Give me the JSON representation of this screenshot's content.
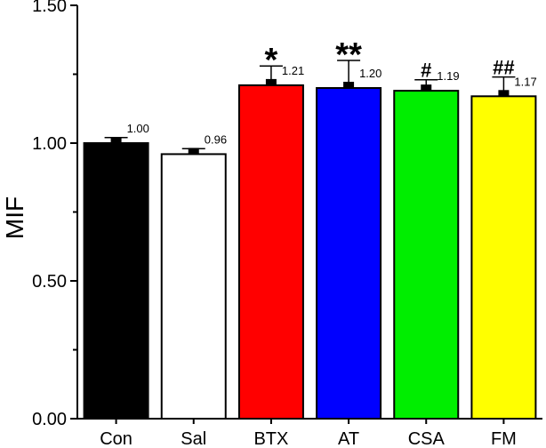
{
  "chart_data": {
    "type": "bar",
    "title": "",
    "xlabel": "",
    "ylabel": "MIF",
    "ylim": [
      0,
      1.5
    ],
    "yticks": [
      0.0,
      0.5,
      1.0,
      1.5
    ],
    "ytick_labels": [
      "0.00",
      "0.50",
      "1.00",
      "1.50"
    ],
    "grid": false,
    "categories": [
      "Con",
      "Sal",
      "BTX",
      "AT",
      "CSA",
      "FM"
    ],
    "values": [
      1.0,
      0.96,
      1.21,
      1.2,
      1.19,
      1.17
    ],
    "value_labels": [
      "1.00",
      "0.96",
      "1.21",
      "1.20",
      "1.19",
      "1.17"
    ],
    "error_upper": [
      0.02,
      0.02,
      0.07,
      0.1,
      0.04,
      0.07
    ],
    "bar_colors": [
      "#000000",
      "#ffffff",
      "#ff0000",
      "#0000ff",
      "#00ee00",
      "#ffff00"
    ],
    "significance": [
      "",
      "",
      "*",
      "**",
      "#",
      "##"
    ]
  }
}
